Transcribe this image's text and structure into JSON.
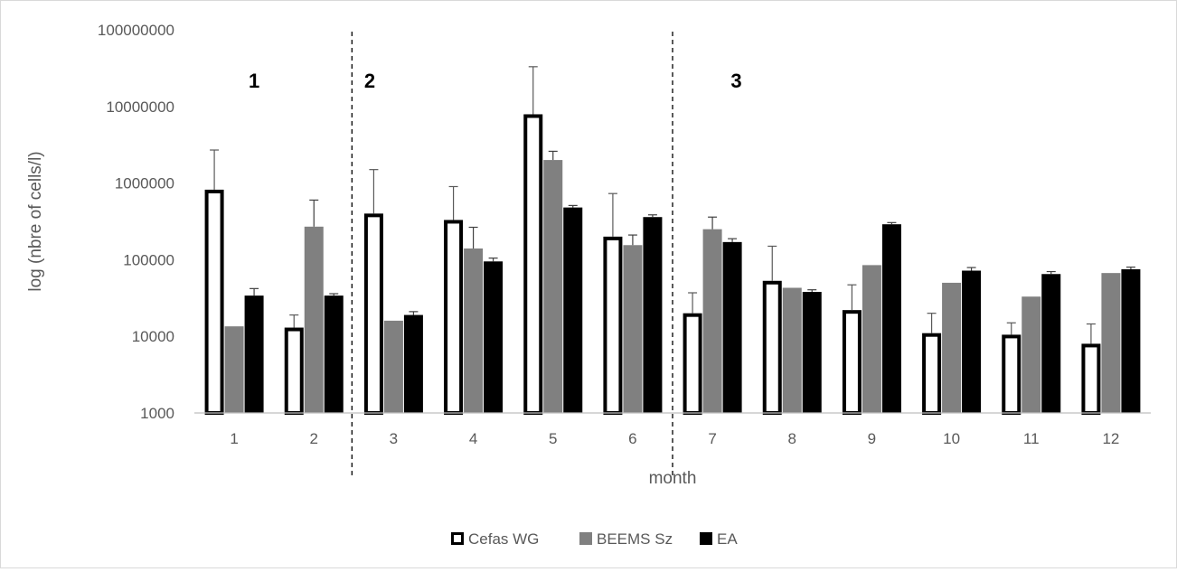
{
  "chart_data": {
    "type": "bar",
    "scale": "log",
    "xlabel": "month",
    "ylabel": "log (nbre of cells/l)",
    "categories": [
      "1",
      "2",
      "3",
      "4",
      "5",
      "6",
      "7",
      "8",
      "9",
      "10",
      "11",
      "12"
    ],
    "ylim": [
      1000,
      100000000
    ],
    "yticks": [
      "1000",
      "10000",
      "100000",
      "1000000",
      "10000000",
      "100000000"
    ],
    "grid": false,
    "legend_position": "bottom",
    "series": [
      {
        "name": "Cefas WG",
        "style": "outline",
        "fill": "#ffffff",
        "stroke": "#000000",
        "values": [
          820000,
          13000,
          400000,
          330000,
          7900000,
          200000,
          20000,
          53000,
          22000,
          11000,
          10500,
          8000
        ],
        "error": [
          2700000,
          19000,
          1500000,
          900000,
          33000000,
          730000,
          37000,
          150000,
          47000,
          20000,
          15000,
          14500
        ]
      },
      {
        "name": "BEEMS Sz",
        "style": "solid",
        "fill": "#808080",
        "values": [
          13500,
          270000,
          16000,
          140000,
          2000000,
          155000,
          250000,
          43000,
          85000,
          50000,
          33000,
          67000
        ],
        "error": [
          null,
          600000,
          null,
          265000,
          2600000,
          210000,
          360000,
          null,
          null,
          null,
          null,
          null
        ]
      },
      {
        "name": "EA",
        "style": "solid",
        "fill": "#000000",
        "values": [
          34000,
          34000,
          19000,
          95000,
          480000,
          360000,
          170000,
          38000,
          290000,
          72000,
          65000,
          75000
        ],
        "error": [
          42000,
          36000,
          21000,
          105000,
          510000,
          385000,
          188000,
          40500,
          305000,
          79000,
          70000,
          80000
        ]
      }
    ],
    "annotations": {
      "period_labels": [
        "1",
        "2",
        "3"
      ],
      "divider_after_categories": [
        "2",
        "6"
      ]
    }
  }
}
